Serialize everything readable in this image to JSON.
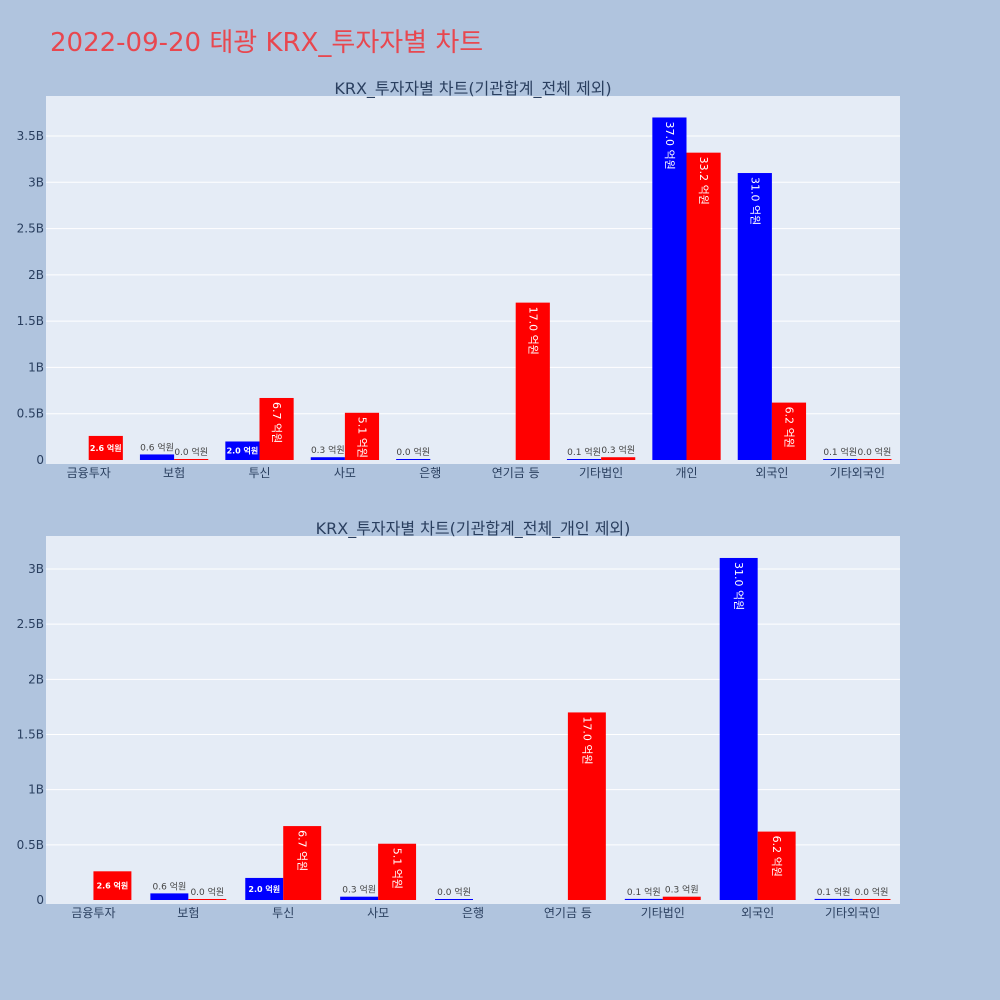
{
  "title": "2022-09-20 태광 KRX_투자자별 차트",
  "colors": {
    "buy": "#0000ff",
    "sell": "#ff0000",
    "plot_bg": "#e5ecf6",
    "page_bg": "#b0c4de",
    "title": "#e8474f"
  },
  "chart_data": [
    {
      "type": "bar",
      "title": "KRX_투자자별 차트(기관합계_전체 제외)",
      "categories": [
        "금융투자",
        "보험",
        "투신",
        "사모",
        "은행",
        "연기금 등",
        "기타법인",
        "개인",
        "외국인",
        "기타외국인"
      ],
      "yticks": [
        "0",
        "0.5B",
        "1B",
        "1.5B",
        "2B",
        "2.5B",
        "3B",
        "3.5B"
      ],
      "ylim": [
        0,
        3.9
      ],
      "grid": true,
      "series": [
        {
          "color": "#0000ff",
          "values": [
            0,
            0.06,
            0.2,
            0.03,
            0.0,
            0,
            0.01,
            3.7,
            3.1,
            0.01
          ],
          "labels": [
            "",
            "0.6 억원",
            "2.0 억원",
            "0.3 억원",
            "0.0 억원",
            "",
            "0.1 억원",
            "37.0 억원",
            "31.0 억원",
            "0.1 억원"
          ]
        },
        {
          "color": "#ff0000",
          "values": [
            0.26,
            0.0,
            0.67,
            0.51,
            0,
            1.7,
            0.03,
            3.32,
            0.62,
            0.0
          ],
          "labels": [
            "2.6 억원",
            "0.0 억원",
            "6.7 억원",
            "5.1 억원",
            "",
            "17.0 억원",
            "0.3 억원",
            "33.2 억원",
            "6.2 억원",
            "0.0 억원"
          ]
        }
      ]
    },
    {
      "type": "bar",
      "title": "KRX_투자자별 차트(기관합계_전체_개인 제외)",
      "categories": [
        "금융투자",
        "보험",
        "투신",
        "사모",
        "은행",
        "연기금 등",
        "기타법인",
        "외국인",
        "기타외국인"
      ],
      "yticks": [
        "0",
        "0.5B",
        "1B",
        "1.5B",
        "2B",
        "2.5B",
        "3B"
      ],
      "ylim": [
        0,
        3.3
      ],
      "grid": true,
      "series": [
        {
          "color": "#0000ff",
          "values": [
            0,
            0.06,
            0.2,
            0.03,
            0.0,
            0,
            0.01,
            3.1,
            0.01
          ],
          "labels": [
            "",
            "0.6 억원",
            "2.0 억원",
            "0.3 억원",
            "0.0 억원",
            "",
            "0.1 억원",
            "31.0 억원",
            "0.1 억원"
          ]
        },
        {
          "color": "#ff0000",
          "values": [
            0.26,
            0.0,
            0.67,
            0.51,
            0,
            1.7,
            0.03,
            0.62,
            0.0
          ],
          "labels": [
            "2.6 억원",
            "0.0 억원",
            "6.7 억원",
            "5.1 억원",
            "",
            "17.0 억원",
            "0.3 억원",
            "6.2 억원",
            "0.0 억원"
          ]
        }
      ]
    }
  ]
}
